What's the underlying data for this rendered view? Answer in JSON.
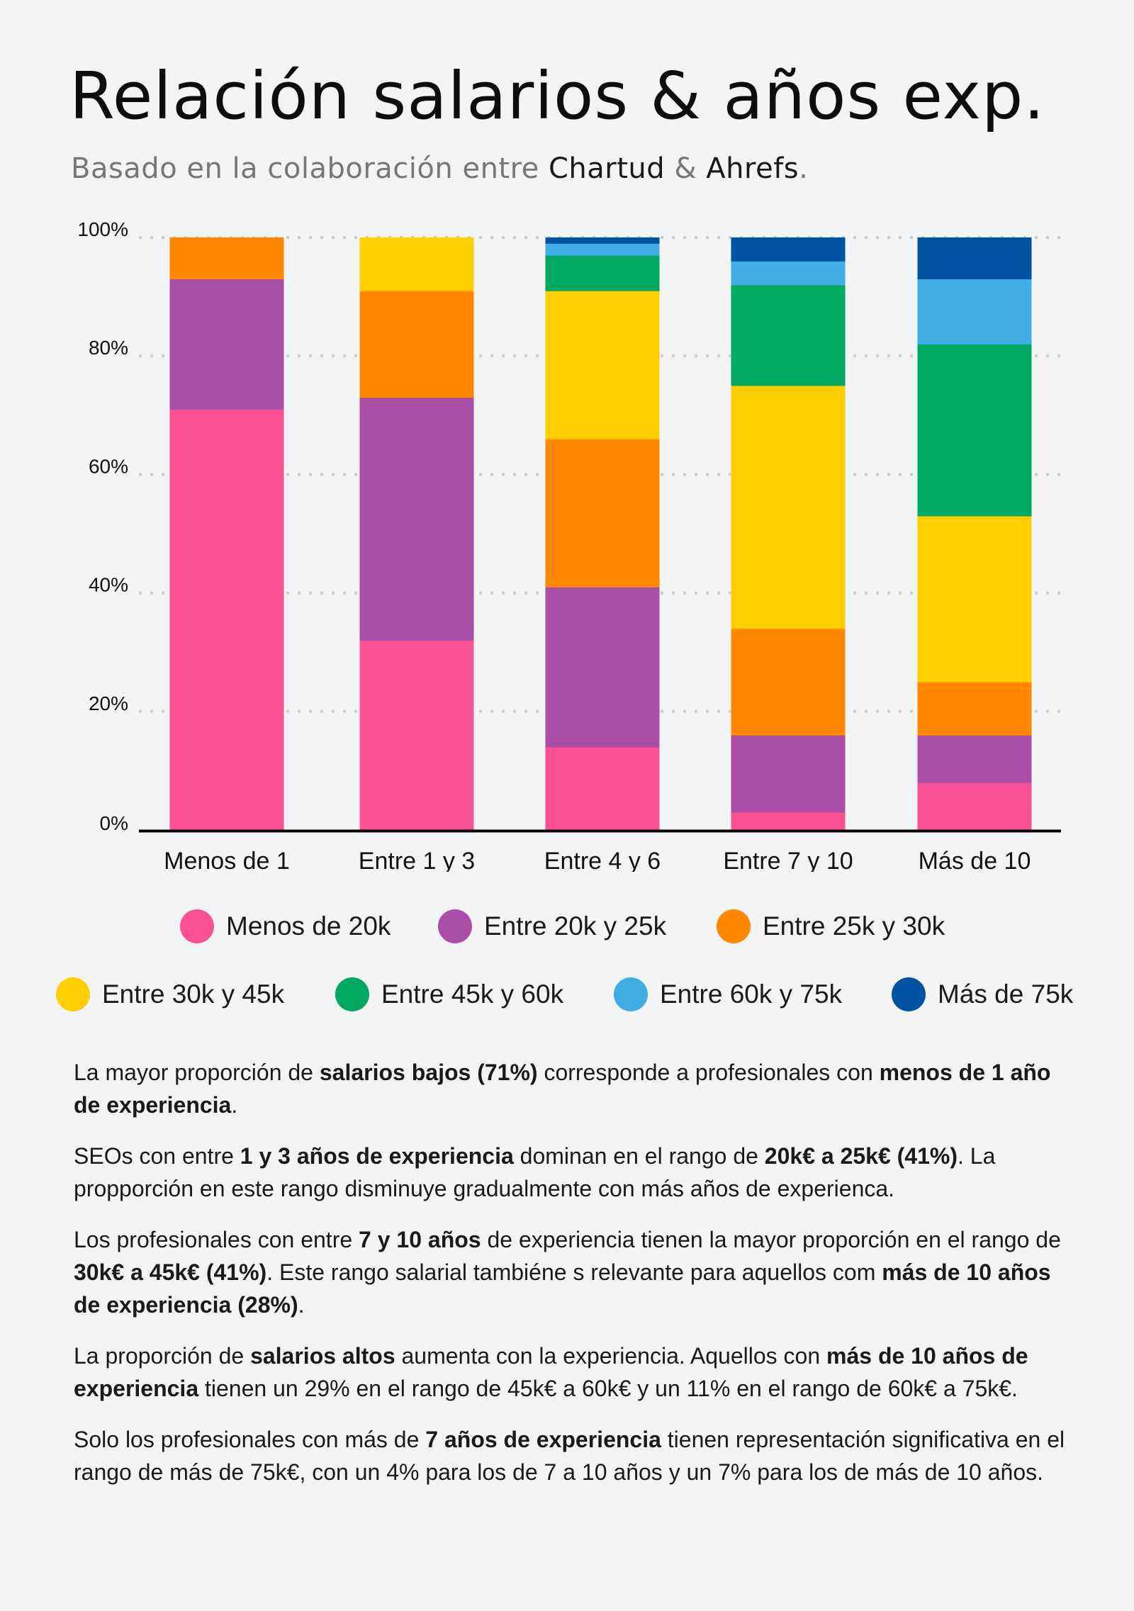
{
  "header": {
    "title": "Relación salarios & años exp.",
    "subtitle_prefix": "Basado en la colaboración entre ",
    "brand1": "Chartud",
    "amp": " & ",
    "brand2": "Ahrefs",
    "period": "."
  },
  "chart_data": {
    "type": "bar",
    "stacked": true,
    "normalized": true,
    "title": "",
    "xlabel": "",
    "ylabel": "",
    "ylim": [
      0,
      100
    ],
    "y_ticks": [
      "0%",
      "20%",
      "40%",
      "60%",
      "80%",
      "100%"
    ],
    "grid": "horizontal dotted",
    "legend_position": "bottom",
    "categories": [
      "Menos de 1",
      "Entre 1 y 3",
      "Entre 4 y 6",
      "Entre 7 y 10",
      "Más de 10"
    ],
    "series": [
      {
        "name": "Menos de 20k",
        "color": "#f95194",
        "values": [
          71,
          32,
          14,
          3,
          8
        ]
      },
      {
        "name": "Entre 20k y 25k",
        "color": "#aa4ea7",
        "values": [
          22,
          41,
          27,
          13,
          8
        ]
      },
      {
        "name": "Entre 25k y 30k",
        "color": "#ff8800",
        "values": [
          7,
          18,
          25,
          18,
          9
        ]
      },
      {
        "name": "Entre 30k y 45k",
        "color": "#ffcf00",
        "values": [
          0,
          9,
          25,
          41,
          28
        ]
      },
      {
        "name": "Entre 45k y 60k",
        "color": "#00a862",
        "values": [
          0,
          0,
          6,
          17,
          29
        ]
      },
      {
        "name": "Entre 60k y 75k",
        "color": "#40aee5",
        "values": [
          0,
          0,
          2,
          4,
          11
        ]
      },
      {
        "name": "Más de 75k",
        "color": "#0052a3",
        "values": [
          0,
          0,
          1,
          4,
          7
        ]
      }
    ]
  },
  "notes": [
    [
      {
        "t": "La mayor proporción de "
      },
      {
        "t": "salarios bajos (71%)",
        "b": true
      },
      {
        "t": " corresponde a profesionales con "
      },
      {
        "t": "menos de 1 año de experiencia",
        "b": true
      },
      {
        "t": "."
      }
    ],
    [
      {
        "t": "SEOs con entre "
      },
      {
        "t": "1 y 3 años de experiencia",
        "b": true
      },
      {
        "t": " dominan en el rango de "
      },
      {
        "t": "20k€ a 25k€ (41%)",
        "b": true
      },
      {
        "t": ". La propporción en este rango disminuye gradualmente con más años de experienca."
      }
    ],
    [
      {
        "t": "Los profesionales con entre "
      },
      {
        "t": "7 y 10 años",
        "b": true
      },
      {
        "t": " de experiencia tienen la mayor proporción en el rango de "
      },
      {
        "t": "30k€ a 45k€ (41%)",
        "b": true
      },
      {
        "t": ". Este rango salarial tambiéne s relevante para aquellos com "
      },
      {
        "t": "más de 10 años de experiencia (28%)",
        "b": true
      },
      {
        "t": "."
      }
    ],
    [
      {
        "t": "La proporción de "
      },
      {
        "t": "salarios altos",
        "b": true
      },
      {
        "t": " aumenta con la experiencia. Aquellos con "
      },
      {
        "t": "más de 10 años de experiencia",
        "b": true
      },
      {
        "t": " tienen un 29% en el rango de 45k€ a 60k€ y un 11% en el rango de 60k€ a 75k€."
      }
    ],
    [
      {
        "t": "Solo los profesionales con más de "
      },
      {
        "t": "7 años de experiencia",
        "b": true
      },
      {
        "t": " tienen representación significativa en el rango de más de 75k€, con un 4% para los de 7 a 10 años y un 7% para los de más de 10 años."
      }
    ]
  ]
}
